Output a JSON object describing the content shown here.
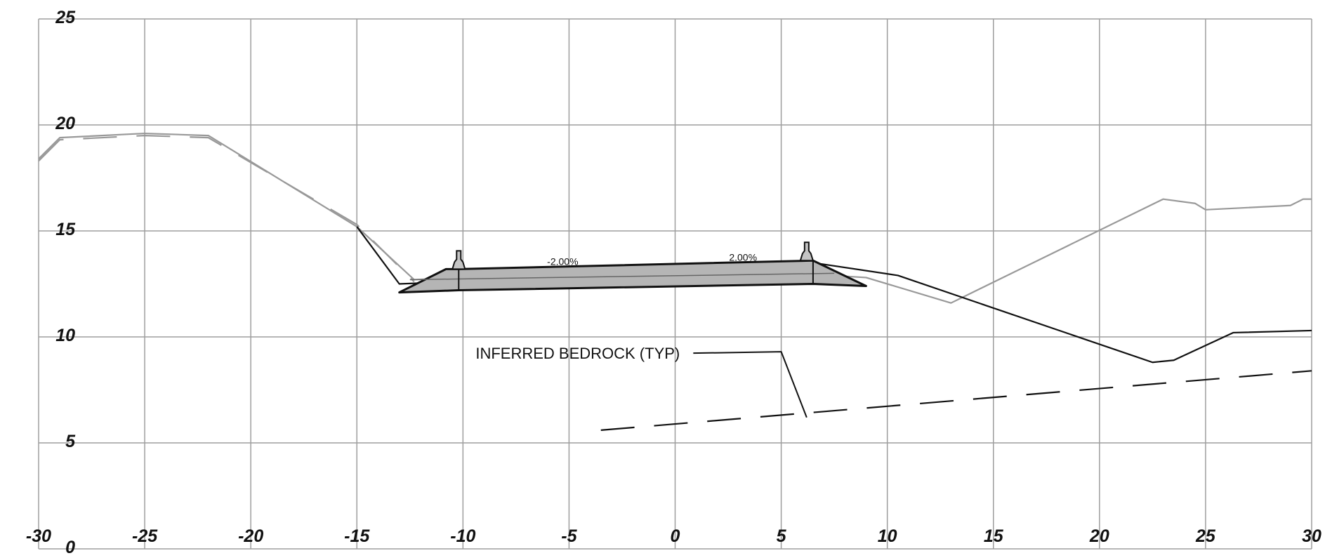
{
  "chart_data": {
    "type": "line",
    "xlim": [
      -30,
      30
    ],
    "ylim": [
      0,
      25
    ],
    "x_ticks": [
      "-30",
      "-25",
      "-20",
      "-15",
      "-10",
      "-5",
      "0",
      "5",
      "10",
      "15",
      "20",
      "25",
      "30"
    ],
    "y_ticks": [
      "0",
      "5",
      "10",
      "15",
      "20",
      "25"
    ],
    "grid": true,
    "series": [
      {
        "color": "#999999",
        "style": "solid",
        "points": [
          [
            -30,
            18.4
          ],
          [
            -29,
            19.4
          ],
          [
            -25,
            19.6
          ],
          [
            -22,
            19.5
          ],
          [
            -15,
            15.2
          ],
          [
            -12.3,
            12.7
          ],
          [
            -10,
            12.8
          ],
          [
            0,
            12.9
          ],
          [
            6.5,
            12.95
          ],
          [
            9,
            12.8
          ],
          [
            13,
            11.6
          ],
          [
            23,
            16.5
          ],
          [
            24.5,
            16.3
          ],
          [
            25,
            16
          ],
          [
            29,
            16.2
          ],
          [
            29.6,
            16.5
          ],
          [
            30,
            16.5
          ]
        ]
      },
      {
        "color": "#999999",
        "style": "dashed",
        "points": [
          [
            -30,
            18.3
          ],
          [
            -29,
            19.3
          ],
          [
            -25,
            19.5
          ],
          [
            -22,
            19.4
          ],
          [
            -15,
            15.3
          ],
          [
            -12.3,
            12.6
          ]
        ]
      },
      {
        "color": "#111111",
        "style": "solid",
        "points": [
          [
            -15,
            15.2
          ],
          [
            -13,
            12.5
          ],
          [
            -10.5,
            12.6
          ]
        ]
      },
      {
        "color": "#111111",
        "style": "solid",
        "points": [
          [
            6.5,
            13.5
          ],
          [
            10.5,
            12.9
          ],
          [
            22.5,
            8.8
          ],
          [
            23.5,
            8.9
          ],
          [
            26.3,
            10.2
          ],
          [
            30,
            10.3
          ]
        ]
      },
      {
        "color": "#111111",
        "style": "dashed",
        "points": [
          [
            -3.5,
            5.6
          ],
          [
            30,
            8.4
          ]
        ]
      }
    ],
    "roadway": {
      "polygon": [
        [
          -13,
          12.1
        ],
        [
          -10.8,
          13.2
        ],
        [
          -10.2,
          13.2
        ],
        [
          6.5,
          13.6
        ],
        [
          9,
          12.4
        ],
        [
          6.5,
          12.5
        ],
        [
          -10.2,
          12.2
        ],
        [
          -13,
          12.1
        ]
      ],
      "slope_labels": [
        {
          "text": "-2.00%",
          "x": -5.3,
          "y": 13.4
        },
        {
          "text": "2.00%",
          "x": 3.2,
          "y": 13.6
        }
      ],
      "barriers": [
        {
          "x": -10.2,
          "base": 13.2
        },
        {
          "x": 6.2,
          "base": 13.6
        }
      ]
    },
    "annotations": [
      {
        "text": "INFERRED BEDROCK (TYP)",
        "x": -10,
        "y": 9.2,
        "pointer": [
          [
            5,
            9.3
          ],
          [
            6.2,
            6.2
          ]
        ]
      }
    ]
  }
}
